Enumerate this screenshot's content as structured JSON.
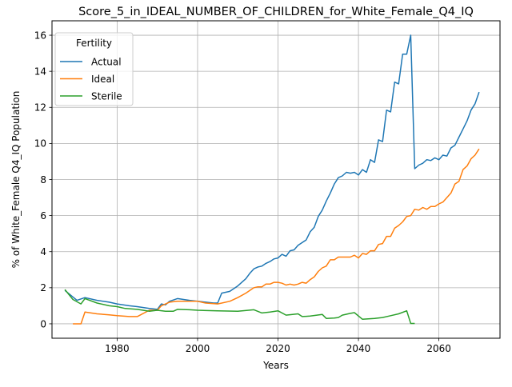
{
  "chart_data": {
    "type": "line",
    "title": "Score_5_in_IDEAL_NUMBER_OF_CHILDREN_for_White_Female_Q4_IQ",
    "xlabel": "Years",
    "ylabel": "% of White_Female Q4_IQ Population",
    "xlim": [
      1963.8,
      2075.2
    ],
    "ylim": [
      -0.8,
      16.8
    ],
    "xticks": [
      1980,
      2000,
      2020,
      2040,
      2060
    ],
    "yticks": [
      0,
      2,
      4,
      6,
      8,
      10,
      12,
      14,
      16
    ],
    "grid": true,
    "legend": {
      "title": "Fertility",
      "placement": "top-left"
    },
    "series": [
      {
        "name": "Actual",
        "color": "#1f77b4",
        "x": [
          1967,
          1970,
          1972,
          1975,
          1978,
          1980,
          1983,
          1985,
          1988,
          1990,
          1991,
          1992,
          1993,
          1995,
          1998,
          2000,
          2002,
          2004,
          2005,
          2006,
          2008,
          2010,
          2012,
          2013,
          2014,
          2015,
          2016,
          2017,
          2018,
          2019,
          2020,
          2021,
          2022,
          2023,
          2024,
          2025,
          2026,
          2027,
          2028,
          2029,
          2030,
          2031,
          2032,
          2033,
          2034,
          2035,
          2036,
          2037,
          2038,
          2039,
          2040,
          2041,
          2042,
          2043,
          2044,
          2045,
          2046,
          2047,
          2048,
          2049,
          2050,
          2051,
          2052,
          2053,
          2054,
          2055,
          2056,
          2057,
          2058,
          2059,
          2060,
          2061,
          2062,
          2063,
          2064,
          2065,
          2066,
          2067,
          2068,
          2069,
          2070
        ],
        "values": [
          1.85,
          1.3,
          1.45,
          1.3,
          1.2,
          1.1,
          1.0,
          0.95,
          0.85,
          0.8,
          1.1,
          1.05,
          1.25,
          1.4,
          1.3,
          1.25,
          1.2,
          1.15,
          1.15,
          1.7,
          1.8,
          2.1,
          2.5,
          2.8,
          3.05,
          3.15,
          3.2,
          3.35,
          3.45,
          3.6,
          3.65,
          3.85,
          3.75,
          4.05,
          4.1,
          4.35,
          4.5,
          4.65,
          5.1,
          5.35,
          5.95,
          6.3,
          6.8,
          7.25,
          7.75,
          8.1,
          8.2,
          8.4,
          8.35,
          8.4,
          8.25,
          8.55,
          8.4,
          9.1,
          8.95,
          10.2,
          10.1,
          11.85,
          11.75,
          13.4,
          13.3,
          14.95,
          14.95,
          16.0,
          8.6,
          8.8,
          8.9,
          9.1,
          9.05,
          9.2,
          9.1,
          9.35,
          9.3,
          9.75,
          9.9,
          10.35,
          10.8,
          11.25,
          11.85,
          12.2,
          12.85
        ]
      },
      {
        "name": "Ideal",
        "color": "#ff7f0e",
        "x": [
          1969,
          1971,
          1972,
          1975,
          1978,
          1980,
          1983,
          1985,
          1988,
          1990,
          1991,
          1993,
          1995,
          1998,
          2000,
          2002,
          2005,
          2008,
          2010,
          2012,
          2014,
          2015,
          2016,
          2017,
          2018,
          2019,
          2020,
          2021,
          2022,
          2023,
          2024,
          2025,
          2026,
          2027,
          2028,
          2029,
          2030,
          2031,
          2032,
          2033,
          2034,
          2035,
          2036,
          2037,
          2038,
          2039,
          2040,
          2041,
          2042,
          2043,
          2044,
          2045,
          2046,
          2047,
          2048,
          2049,
          2050,
          2051,
          2052,
          2053,
          2054,
          2055,
          2056,
          2057,
          2058,
          2059,
          2060,
          2061,
          2062,
          2063,
          2064,
          2065,
          2066,
          2067,
          2068,
          2069,
          2070
        ],
        "values": [
          0.0,
          0.0,
          0.65,
          0.55,
          0.5,
          0.45,
          0.4,
          0.4,
          0.75,
          0.75,
          1.0,
          1.2,
          1.25,
          1.25,
          1.25,
          1.15,
          1.1,
          1.25,
          1.45,
          1.7,
          2.0,
          2.05,
          2.05,
          2.2,
          2.2,
          2.3,
          2.3,
          2.25,
          2.15,
          2.2,
          2.15,
          2.2,
          2.3,
          2.25,
          2.45,
          2.6,
          2.9,
          3.1,
          3.2,
          3.55,
          3.55,
          3.7,
          3.7,
          3.7,
          3.7,
          3.8,
          3.65,
          3.9,
          3.85,
          4.05,
          4.05,
          4.4,
          4.45,
          4.85,
          4.85,
          5.3,
          5.45,
          5.65,
          5.95,
          6.0,
          6.35,
          6.3,
          6.45,
          6.35,
          6.5,
          6.5,
          6.65,
          6.75,
          7.0,
          7.25,
          7.75,
          7.9,
          8.55,
          8.75,
          9.15,
          9.35,
          9.7
        ]
      },
      {
        "name": "Sterile",
        "color": "#2ca02c",
        "x": [
          1967,
          1969,
          1971,
          1972,
          1975,
          1978,
          1980,
          1982,
          1985,
          1988,
          1990,
          1992,
          1994,
          1995,
          1998,
          2000,
          2005,
          2010,
          2014,
          2016,
          2018,
          2020,
          2022,
          2025,
          2026,
          2028,
          2031,
          2032,
          2034,
          2035,
          2036,
          2038,
          2039,
          2041,
          2044,
          2046,
          2048,
          2050,
          2052,
          2053,
          2054
        ],
        "values": [
          1.9,
          1.35,
          1.1,
          1.4,
          1.15,
          1.0,
          0.95,
          0.85,
          0.8,
          0.7,
          0.75,
          0.7,
          0.7,
          0.8,
          0.78,
          0.75,
          0.72,
          0.7,
          0.78,
          0.6,
          0.65,
          0.72,
          0.48,
          0.55,
          0.4,
          0.43,
          0.52,
          0.3,
          0.32,
          0.35,
          0.48,
          0.58,
          0.62,
          0.25,
          0.3,
          0.35,
          0.45,
          0.55,
          0.72,
          0.02,
          0.02
        ]
      }
    ]
  }
}
